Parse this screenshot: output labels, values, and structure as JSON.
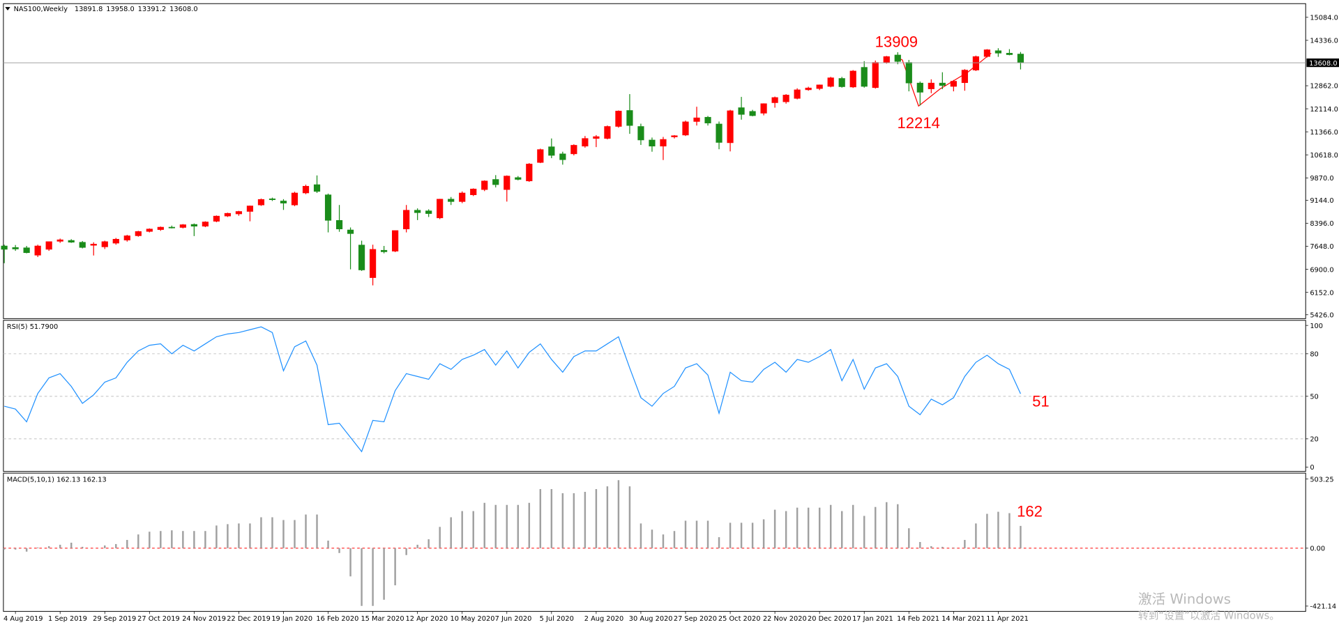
{
  "chart_data": [
    {
      "type": "candlestick",
      "title": "NAS100,Weekly",
      "header_values": [
        13891.8,
        {
          "value": 13958,
          "label": "13958.0"
        },
        {
          "value": 13391.2,
          "label": "13391.2"
        },
        {
          "value": 13608,
          "label": "13608.0"
        }
      ],
      "categories": [
        null,
        "4 Aug 2019",
        null,
        null,
        null,
        "1 Sep 2019",
        null,
        null,
        null,
        "29 Sep 2019",
        null,
        null,
        null,
        "27 Oct 2019",
        null,
        null,
        null,
        "24 Nov 2019",
        null,
        null,
        null,
        "22 Dec 2019",
        null,
        null,
        null,
        "19 Jan 2020",
        null,
        null,
        null,
        "16 Feb 2020",
        null,
        null,
        null,
        "15 Mar 2020",
        null,
        null,
        null,
        "12 Apr 2020",
        null,
        null,
        null,
        "10 May 2020",
        null,
        null,
        null,
        "7 Jun 2020",
        null,
        null,
        null,
        "5 Jul 2020",
        null,
        null,
        null,
        "2 Aug 2020",
        null,
        null,
        null,
        "30 Aug 2020",
        null,
        null,
        null,
        "27 Sep 2020",
        null,
        null,
        null,
        "25 Oct 2020",
        null,
        null,
        null,
        "22 Nov 2020",
        null,
        null,
        null,
        "20 Dec 2020",
        null,
        null,
        null,
        "17 Jan 2021",
        null,
        null,
        null,
        "14 Feb 2021",
        null,
        null,
        null,
        "14 Mar 2021",
        null,
        null,
        null,
        "11 Apr 2021",
        null,
        null
      ],
      "open": [
        7660,
        7610,
        7600,
        7360,
        7550,
        7810,
        7840,
        7780,
        7680,
        7630,
        7750,
        7850,
        7990,
        8130,
        8190,
        8270,
        8260,
        8360,
        8300,
        8460,
        8630,
        8700,
        8780,
        8990,
        9190,
        9120,
        8990,
        9380,
        9650,
        9320,
        8490,
        8180,
        7690,
        6630,
        7520,
        7490,
        8210,
        8820,
        8800,
        8570,
        9180,
        9100,
        9320,
        9490,
        9820,
        9490,
        9880,
        9770,
        10370,
        10880,
        10650,
        10650,
        10900,
        11150,
        11150,
        11540,
        12060,
        11540,
        11100,
        10900,
        11200,
        11260,
        11700,
        11840,
        11620,
        11010,
        12150,
        12030,
        11970,
        12310,
        12340,
        12450,
        12730,
        12770,
        12840,
        13100,
        12820,
        13460,
        12800,
        13620,
        13860,
        13620,
        12950,
        12760,
        12950,
        12840,
        12960,
        13370,
        13810,
        14000,
        13920,
        13891.8
      ],
      "high": [
        7700,
        7690,
        7660,
        7700,
        7800,
        7900,
        7880,
        7820,
        7780,
        7830,
        7920,
        8020,
        8150,
        8230,
        8290,
        8320,
        8370,
        8390,
        8460,
        8650,
        8740,
        8800,
        8970,
        9200,
        9230,
        9180,
        9420,
        9650,
        9950,
        9360,
        8990,
        8260,
        7830,
        7700,
        7660,
        8160,
        8990,
        8880,
        8850,
        9190,
        9250,
        9430,
        9530,
        9790,
        9960,
        9950,
        9930,
        10350,
        10820,
        11150,
        10720,
        10960,
        11230,
        11260,
        11570,
        12060,
        12590,
        11630,
        11180,
        11200,
        11260,
        11730,
        12180,
        11880,
        11700,
        12080,
        12500,
        12080,
        12290,
        12510,
        12590,
        12780,
        12830,
        12900,
        13150,
        13150,
        13370,
        13660,
        13680,
        13830,
        13950,
        13700,
        13000,
        13070,
        13300,
        13050,
        13400,
        13840,
        14050,
        14080,
        14050,
        13958
      ],
      "low": [
        7100,
        7500,
        7420,
        7300,
        7500,
        7760,
        7760,
        7580,
        7350,
        7560,
        7700,
        7800,
        7960,
        8100,
        8150,
        8230,
        8230,
        7980,
        8270,
        8430,
        8600,
        8640,
        8460,
        8960,
        9120,
        8830,
        8950,
        9340,
        9380,
        8100,
        8120,
        6900,
        6850,
        6380,
        7420,
        7460,
        8100,
        8500,
        8600,
        8530,
        8990,
        9050,
        9280,
        9440,
        9560,
        9100,
        9790,
        9740,
        10350,
        10510,
        10300,
        10600,
        10850,
        10870,
        11120,
        11500,
        11300,
        10940,
        10720,
        10450,
        11150,
        11230,
        11570,
        11570,
        10800,
        10730,
        11760,
        11870,
        11900,
        12150,
        12280,
        12420,
        12700,
        12720,
        12810,
        12800,
        12790,
        12800,
        12770,
        13580,
        13560,
        12680,
        12220,
        12620,
        12750,
        12680,
        12700,
        13340,
        13780,
        13800,
        13850,
        13391.2
      ],
      "close": [
        7550,
        7560,
        7440,
        7660,
        7800,
        7860,
        7780,
        7610,
        7720,
        7800,
        7880,
        7990,
        8130,
        8210,
        8270,
        8250,
        8350,
        8300,
        8440,
        8630,
        8720,
        8780,
        8960,
        9170,
        9160,
        9050,
        9380,
        9600,
        9430,
        8490,
        8210,
        8060,
        6880,
        7550,
        7470,
        8160,
        8820,
        8740,
        8710,
        9180,
        9100,
        9380,
        9510,
        9770,
        9650,
        9930,
        9820,
        10320,
        10790,
        10600,
        10460,
        10930,
        11150,
        11210,
        11540,
        12040,
        11570,
        11100,
        10900,
        11120,
        11240,
        11690,
        11820,
        11650,
        11020,
        12050,
        11930,
        11890,
        12280,
        12480,
        12560,
        12730,
        12790,
        12890,
        13120,
        12830,
        13340,
        12840,
        13620,
        13810,
        13650,
        12950,
        12650,
        12950,
        12870,
        13010,
        13370,
        13810,
        14030,
        13920,
        13870,
        13608
      ],
      "up_color": "#ff0000",
      "down_color": "#1a8c1a",
      "ylim": [
        5300,
        15500
      ],
      "yticks": [
        {
          "value": 15084,
          "label": "15084.0"
        },
        {
          "value": 14336,
          "label": "14336.0"
        },
        {
          "value": 12862,
          "label": "12862.0"
        },
        {
          "value": 12114,
          "label": "12114.0"
        },
        {
          "value": 11366,
          "label": "11366.0"
        },
        {
          "value": 10618,
          "label": "10618.0"
        },
        {
          "value": 9870,
          "label": "9870.0"
        },
        {
          "value": 9144,
          "label": "9144.0"
        },
        {
          "value": 8396,
          "label": "8396.0"
        },
        {
          "value": 7648,
          "label": "7648.0"
        },
        {
          "value": 6900,
          "label": "6900.0"
        },
        {
          "value": 6152,
          "label": "6152.0"
        },
        {
          "value": 5426,
          "label": "5426.0"
        }
      ],
      "current_price": {
        "value": 13608,
        "label": "13608.0"
      },
      "annotations": [
        "13909",
        "12214"
      ],
      "annotation_color": "#ff0000"
    },
    {
      "type": "line",
      "title": "RSI(5) 51.7900",
      "color": "#1e90ff",
      "values": [
        43,
        41,
        32,
        52,
        63,
        66,
        57,
        45,
        51,
        60,
        63,
        74,
        82,
        86,
        87,
        80,
        86,
        82,
        87,
        92,
        94,
        95,
        97,
        99,
        95,
        68,
        85,
        89,
        72,
        30,
        31,
        21,
        11,
        33,
        32,
        54,
        66,
        64,
        62,
        73,
        69,
        76,
        79,
        83,
        72,
        82,
        70,
        81,
        87,
        76,
        67,
        78,
        82,
        82,
        87,
        92,
        70,
        49,
        43,
        52,
        57,
        70,
        73,
        65,
        38,
        67,
        61,
        60,
        69,
        74,
        67,
        76,
        74,
        78,
        83,
        61,
        76,
        55,
        70,
        73,
        64,
        43,
        37,
        48,
        44,
        49,
        64,
        74,
        79,
        73,
        69,
        51.79
      ],
      "ylim": [
        -3,
        103
      ],
      "yticks": [
        0,
        20,
        50,
        80,
        100
      ],
      "levels": [
        20,
        50,
        80
      ],
      "level_color": "#c0c0c0",
      "annotations": [
        "51"
      ],
      "annotation_color": "#ff0000"
    },
    {
      "type": "bar",
      "title": "MACD(5,10,1) 162.13 162.13",
      "color": "#a0a0a0",
      "values": [
        -10,
        -10,
        -25,
        5,
        15,
        25,
        40,
        10,
        0,
        20,
        30,
        60,
        100,
        120,
        125,
        130,
        125,
        125,
        125,
        165,
        175,
        180,
        180,
        225,
        225,
        205,
        205,
        245,
        245,
        55,
        -35,
        -205,
        -420,
        -420,
        -375,
        -270,
        -50,
        25,
        65,
        155,
        225,
        270,
        270,
        330,
        315,
        315,
        315,
        330,
        430,
        430,
        400,
        400,
        410,
        430,
        450,
        495,
        450,
        180,
        135,
        100,
        125,
        200,
        200,
        200,
        80,
        185,
        185,
        185,
        210,
        280,
        270,
        295,
        295,
        295,
        315,
        270,
        315,
        235,
        300,
        335,
        320,
        145,
        45,
        15,
        10,
        5,
        60,
        180,
        250,
        265,
        255,
        162.13
      ],
      "ylim": [
        -460,
        540
      ],
      "yticks": [
        {
          "value": 503.25,
          "label": "503.25"
        },
        {
          "value": 0,
          "label": "0.00"
        },
        {
          "value": -421.14,
          "label": "-421.14"
        }
      ],
      "levels": [
        0
      ],
      "level_color": "#ff0000",
      "annotations": [
        "162"
      ],
      "annotation_color": "#ff0000"
    }
  ],
  "watermark": [
    "激活 Windows",
    "转到“设置”以激活 Windows。"
  ]
}
